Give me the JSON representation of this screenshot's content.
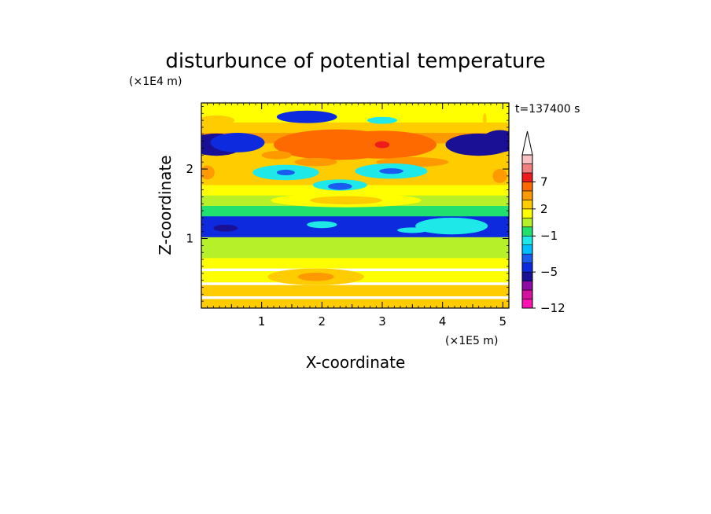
{
  "chart_data": {
    "type": "heatmap",
    "title": "disturbunce of potential temperature",
    "y_scale_label": "(×1E4 m)",
    "x_scale_label": "(×1E5 m)",
    "xlabel": "X-coordinate",
    "ylabel": "Z-coordinate",
    "time_label": "t=137400 s",
    "xlim": [
      0,
      5.1
    ],
    "ylim": [
      0,
      2.95
    ],
    "x_ticks": [
      "1",
      "2",
      "3",
      "4",
      "5"
    ],
    "x_tick_values": [
      1,
      2,
      3,
      4,
      5
    ],
    "y_ticks": [
      "1",
      "2"
    ],
    "y_tick_values": [
      1,
      2
    ],
    "colorbar": {
      "labels": [
        "7",
        "2",
        "−1",
        "−5",
        "−12"
      ],
      "label_values": [
        7,
        2,
        -1,
        -5,
        -12
      ],
      "levels": [
        -12,
        -10,
        -8,
        -6,
        -5,
        -4,
        -3,
        -2,
        -1,
        0,
        1,
        2,
        3,
        5,
        7,
        9,
        11
      ],
      "colors": [
        "#ff11b4",
        "#d4129f",
        "#8e0aa5",
        "#1a1096",
        "#0e2ade",
        "#1a5cf0",
        "#00bfff",
        "#1ee8e8",
        "#20e070",
        "#b5f028",
        "#ffff00",
        "#ffcc00",
        "#ff9900",
        "#ff6a00",
        "#ee1c1c",
        "#f28080",
        "#f8c0c0"
      ],
      "extend": "max"
    },
    "band_rows": [
      [
        0.05,
        2.2
      ],
      [
        0.25,
        2.3
      ],
      [
        0.45,
        1.6
      ],
      [
        0.65,
        1.1
      ],
      [
        0.8,
        0.8
      ],
      [
        0.95,
        0.3
      ],
      [
        1.1,
        -4.4
      ],
      [
        1.25,
        -4.8
      ],
      [
        1.4,
        -0.4
      ],
      [
        1.55,
        0.6
      ],
      [
        1.7,
        1.8
      ],
      [
        1.85,
        2.6
      ],
      [
        2.0,
        2.4
      ],
      [
        2.15,
        2.9
      ],
      [
        2.3,
        2.2
      ],
      [
        2.45,
        3.9
      ],
      [
        2.6,
        2.6
      ],
      [
        2.75,
        1.6
      ],
      [
        2.9,
        1.0
      ]
    ],
    "features": [
      {
        "x": 0.25,
        "z": 2.35,
        "value": -5.5
      },
      {
        "x": 0.6,
        "z": 2.38,
        "value": -4.5
      },
      {
        "x": 4.6,
        "z": 2.35,
        "value": -5.5
      },
      {
        "x": 4.95,
        "z": 2.4,
        "value": -5.5
      },
      {
        "x": 2.25,
        "z": 2.35,
        "value": 5.5
      },
      {
        "x": 3.0,
        "z": 2.35,
        "value": 6
      },
      {
        "x": 3.0,
        "z": 2.35,
        "value": 8.5
      },
      {
        "x": 1.9,
        "z": 2.1,
        "value": 4
      },
      {
        "x": 3.5,
        "z": 2.1,
        "value": 3.5
      },
      {
        "x": 1.25,
        "z": 2.2,
        "value": 3
      },
      {
        "x": 1.4,
        "z": 1.95,
        "value": -1.5
      },
      {
        "x": 3.15,
        "z": 1.97,
        "value": -2
      },
      {
        "x": 1.4,
        "z": 1.95,
        "value": -3.8
      },
      {
        "x": 3.15,
        "z": 1.97,
        "value": -3.8
      },
      {
        "x": 2.3,
        "z": 1.77,
        "value": -1.5
      },
      {
        "x": 2.3,
        "z": 1.75,
        "value": -3.5
      },
      {
        "x": 2.4,
        "z": 1.55,
        "value": 1.5
      },
      {
        "x": 2.4,
        "z": 1.55,
        "value": 2.5
      },
      {
        "x": 0.1,
        "z": 1.95,
        "value": 3.5
      },
      {
        "x": 4.95,
        "z": 1.9,
        "value": 3
      },
      {
        "x": 0.25,
        "z": 2.7,
        "value": 2.5
      },
      {
        "x": 4.7,
        "z": 2.72,
        "value": 2.5
      },
      {
        "x": 1.75,
        "z": 2.75,
        "value": -4.5
      },
      {
        "x": 3.0,
        "z": 2.7,
        "value": -1.5
      },
      {
        "x": 2.0,
        "z": 1.2,
        "value": -1.8
      },
      {
        "x": 3.5,
        "z": 1.12,
        "value": -1.5
      },
      {
        "x": 4.15,
        "z": 1.18,
        "value": -1.5
      },
      {
        "x": 1.9,
        "z": 0.45,
        "value": 2.5
      },
      {
        "x": 4.4,
        "z": 0.45,
        "value": 1.7
      },
      {
        "x": 1.9,
        "z": 0.45,
        "value": 3.5
      },
      {
        "x": 0.4,
        "z": 1.15,
        "value": -5.5
      }
    ]
  }
}
